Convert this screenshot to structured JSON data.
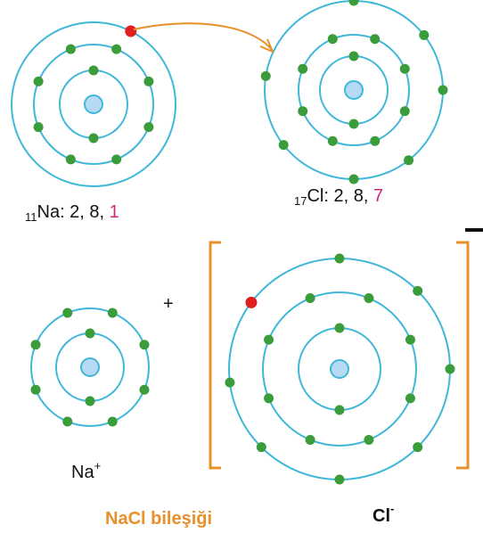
{
  "na_atom": {
    "atomic_number": "11",
    "text": "Na: 2, 8, ",
    "valence": "1"
  },
  "cl_atom": {
    "atomic_number": "17",
    "text": "Cl: 2, 8, ",
    "valence": "7"
  },
  "plus": "+",
  "na_ion": {
    "symbol": "Na",
    "charge": "+"
  },
  "cl_ion": {
    "symbol": "Cl",
    "charge": "-"
  },
  "compound": "NaCl bileşiği"
}
